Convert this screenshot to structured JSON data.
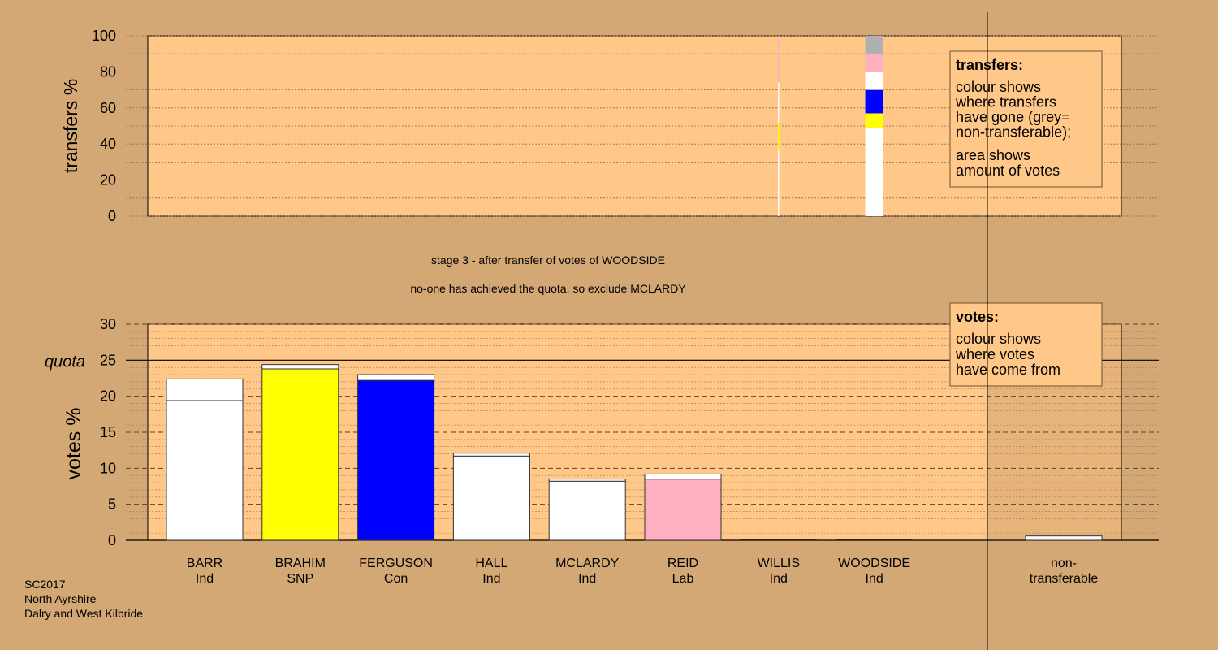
{
  "chart_data": [
    {
      "type": "bar",
      "title": "",
      "ylabel": "transfers %",
      "ylim": [
        0,
        100
      ],
      "yticks": [
        0,
        20,
        40,
        60,
        80,
        100
      ],
      "grid": true,
      "series_colors": [
        "#ffffff",
        "#ffff00",
        "#0000ff",
        "#ffffff",
        "#ffb0c0",
        "#b0b0b0"
      ],
      "transfers": [
        {
          "candidate": "WILLIS",
          "width_pct": 0.1,
          "segments": [
            {
              "to": "BARR",
              "color": "#ffffff",
              "from": 0,
              "to_pct": 37
            },
            {
              "to": "BRAHIM",
              "color": "#ffff00",
              "from": 37,
              "to_pct": 52
            },
            {
              "to": "HALL",
              "color": "#ffffff",
              "from": 52,
              "to_pct": 74
            },
            {
              "to": "REID",
              "color": "#ffb0c0",
              "from": 74,
              "to_pct": 100
            }
          ]
        },
        {
          "candidate": "WOODSIDE",
          "width_pct": 2.0,
          "segments": [
            {
              "to": "BARR",
              "color": "#ffffff",
              "from": 0,
              "to_pct": 49
            },
            {
              "to": "BRAHIM",
              "color": "#ffff00",
              "from": 49,
              "to_pct": 57
            },
            {
              "to": "FERGUSON",
              "color": "#0000ff",
              "from": 57,
              "to_pct": 70
            },
            {
              "to": "HALL",
              "color": "#ffffff",
              "from": 70,
              "to_pct": 80
            },
            {
              "to": "REID",
              "color": "#ffb0c0",
              "from": 80,
              "to_pct": 90
            },
            {
              "to": "non-transferable",
              "color": "#b0b0b0",
              "from": 90,
              "to_pct": 100
            }
          ]
        }
      ],
      "legend": {
        "title": "transfers:",
        "lines1": [
          "colour shows",
          "where transfers",
          "have gone (grey=",
          "non-transferable);"
        ],
        "lines2": [
          "area shows",
          "amount of votes"
        ]
      }
    },
    {
      "type": "bar",
      "title": "",
      "ylabel": "votes %",
      "ylim": [
        0,
        30
      ],
      "yticks": [
        0,
        5,
        10,
        15,
        20,
        25,
        30
      ],
      "quota": 25,
      "quota_label": "quota",
      "grid": true,
      "categories": [
        {
          "name": "BARR",
          "party": "Ind",
          "color": "#ffffff",
          "base": 19.4,
          "total": 22.4
        },
        {
          "name": "BRAHIM",
          "party": "SNP",
          "color": "#ffff00",
          "base": 23.8,
          "total": 24.4
        },
        {
          "name": "FERGUSON",
          "party": "Con",
          "color": "#0000ff",
          "base": 22.2,
          "total": 23.0
        },
        {
          "name": "HALL",
          "party": "Ind",
          "color": "#ffffff",
          "base": 11.7,
          "total": 12.1
        },
        {
          "name": "MCLARDY",
          "party": "Ind",
          "color": "#ffffff",
          "base": 8.2,
          "total": 8.5
        },
        {
          "name": "REID",
          "party": "Lab",
          "color": "#ffb0c0",
          "base": 8.5,
          "total": 9.2
        },
        {
          "name": "WILLIS",
          "party": "Ind",
          "color": "#ffffff",
          "base": 0,
          "total": 0
        },
        {
          "name": "WOODSIDE",
          "party": "Ind",
          "color": "#ffffff",
          "base": 0,
          "total": 0
        }
      ],
      "nontransferable": {
        "label1": "non-",
        "label2": "transferable",
        "value": 0.6
      },
      "legend": {
        "title": "votes:",
        "lines": [
          "colour shows",
          "where votes",
          "have come from"
        ]
      }
    }
  ],
  "stage_title": "stage 3 - after transfer of votes of WOODSIDE",
  "stage_subtitle": "no-one has achieved the quota, so exclude MCLARDY",
  "footer": [
    "SC2017",
    "North Ayrshire",
    "Dalry and West Kilbride"
  ],
  "colors": {
    "background": "#d4a874",
    "plot_bg": "#ffc888",
    "nt_shade": "#c89c6a"
  }
}
